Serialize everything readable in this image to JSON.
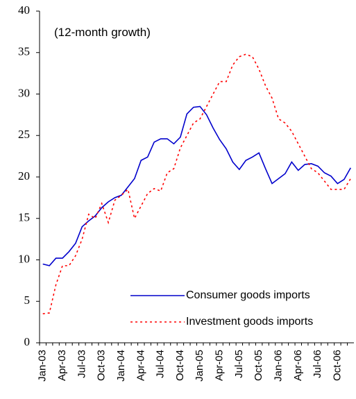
{
  "chart_data": {
    "type": "line",
    "annotation": "(12-month growth)",
    "categories": [
      "Jan-03",
      null,
      null,
      "Apr-03",
      null,
      null,
      "Jul-03",
      null,
      null,
      "Oct-03",
      null,
      null,
      "Jan-04",
      null,
      null,
      "Apr-04",
      null,
      null,
      "Jul-04",
      null,
      null,
      "Oct-04",
      null,
      null,
      "Jan-05",
      null,
      null,
      "Apr-05",
      null,
      null,
      "Jul-05",
      null,
      null,
      "Oct-05",
      null,
      null,
      "Jan-06",
      null,
      null,
      "Apr-06",
      null,
      null,
      "Jul-06",
      null,
      null,
      "Oct-06",
      null,
      null
    ],
    "series": [
      {
        "name": "Consumer goods imports",
        "color": "#0000cc",
        "dash": false,
        "values": [
          9.5,
          9.3,
          10.2,
          10.2,
          11,
          12,
          14,
          14.7,
          15.3,
          16.3,
          17,
          17.5,
          17.8,
          18.8,
          19.8,
          22,
          22.4,
          24.2,
          24.6,
          24.6,
          24,
          24.8,
          27.6,
          28.4,
          28.5,
          27.5,
          25.9,
          24.5,
          23.4,
          21.8,
          20.9,
          22,
          22.4,
          22.9,
          21,
          19.2,
          19.8,
          20.4,
          21.8,
          20.8,
          21.5,
          21.6,
          21.3,
          20.5,
          20.1,
          19.2,
          19.7,
          21.1
        ]
      },
      {
        "name": "Investment goods imports",
        "color": "#ff0000",
        "dash": true,
        "values": [
          3.5,
          3.6,
          7,
          9.3,
          9.3,
          10.5,
          12.5,
          15.5,
          15,
          16.8,
          14.5,
          17.2,
          17.8,
          18.5,
          15,
          16.5,
          18,
          18.6,
          18.3,
          20.5,
          21,
          23.5,
          25,
          26.5,
          27,
          28.5,
          30,
          31.5,
          31.5,
          33.5,
          34.5,
          34.8,
          34.5,
          33,
          31,
          29.5,
          27,
          26.5,
          25.5,
          24,
          22.5,
          21,
          20.5,
          19.5,
          18.5,
          18.5,
          18.5,
          19.8
        ]
      }
    ],
    "ylim": [
      0,
      40
    ],
    "yticks": [
      0,
      5,
      10,
      15,
      20,
      25,
      30,
      35,
      40
    ],
    "grid": false,
    "legend": "bottom-right"
  }
}
